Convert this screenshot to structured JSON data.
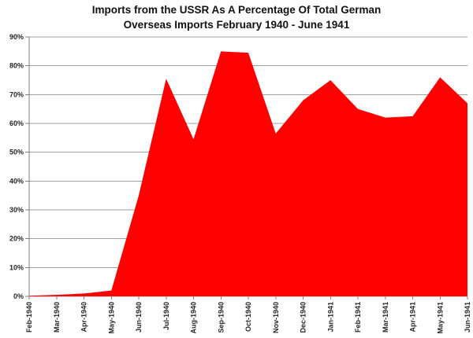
{
  "chart": {
    "title_line1": "Imports from the USSR As A Percentage Of Total German",
    "title_line2": "Overseas Imports February 1940 - June 1941"
  },
  "chart_data": {
    "type": "area",
    "title": "Imports from the USSR As A Percentage Of Total German Overseas Imports February 1940 - June 1941",
    "xlabel": "",
    "ylabel": "",
    "categories": [
      "Feb-1940",
      "Mar-1940",
      "Apr-1940",
      "May-1940",
      "Jun-1940",
      "Jul-1940",
      "Aug-1940",
      "Sep-1940",
      "Oct-1940",
      "Nov-1940",
      "Dec-1940",
      "Jan-1941",
      "Feb-1941",
      "Mar-1941",
      "Apr-1941",
      "May-1941",
      "Jun-1941"
    ],
    "values": [
      0.2,
      0.5,
      1,
      2,
      35,
      75.5,
      54.5,
      85,
      84.5,
      56.5,
      68,
      75,
      65,
      62,
      62.5,
      76,
      67
    ],
    "ylim": [
      0,
      90
    ],
    "ytick_step": 10,
    "ytick_labels": [
      "0%",
      "10%",
      "20%",
      "30%",
      "40%",
      "50%",
      "60%",
      "70%",
      "80%",
      "90%"
    ],
    "grid": true,
    "legend": false,
    "colors": {
      "series_fill": "#FF0000",
      "gridline": "#A0A0A0",
      "axis": "#808080",
      "tick_label": "#262626",
      "title": "#111111",
      "background": "#FFFFFF"
    }
  }
}
